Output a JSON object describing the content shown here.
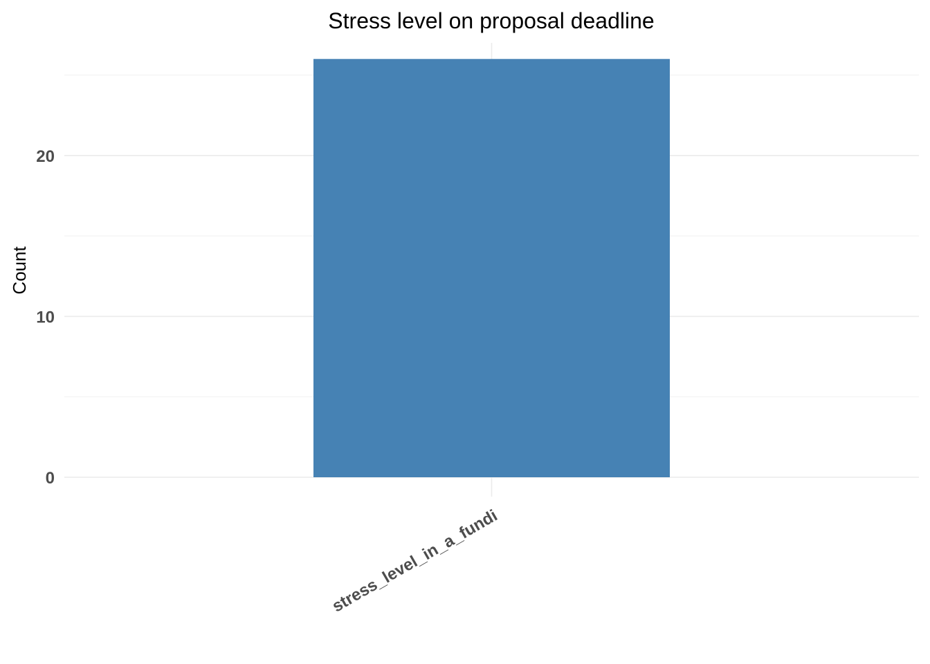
{
  "chart_data": {
    "type": "bar",
    "title": "Stress level on proposal deadline",
    "xlabel": "",
    "ylabel": "Count",
    "categories": [
      "stress_level_in_a_fundi"
    ],
    "values": [
      26
    ],
    "ylim": [
      0,
      27
    ],
    "yticks": [
      0,
      10,
      20
    ],
    "grid": true,
    "legend": "none",
    "bar_color": "#4682B4",
    "x_tick_rotation_deg": 30
  }
}
